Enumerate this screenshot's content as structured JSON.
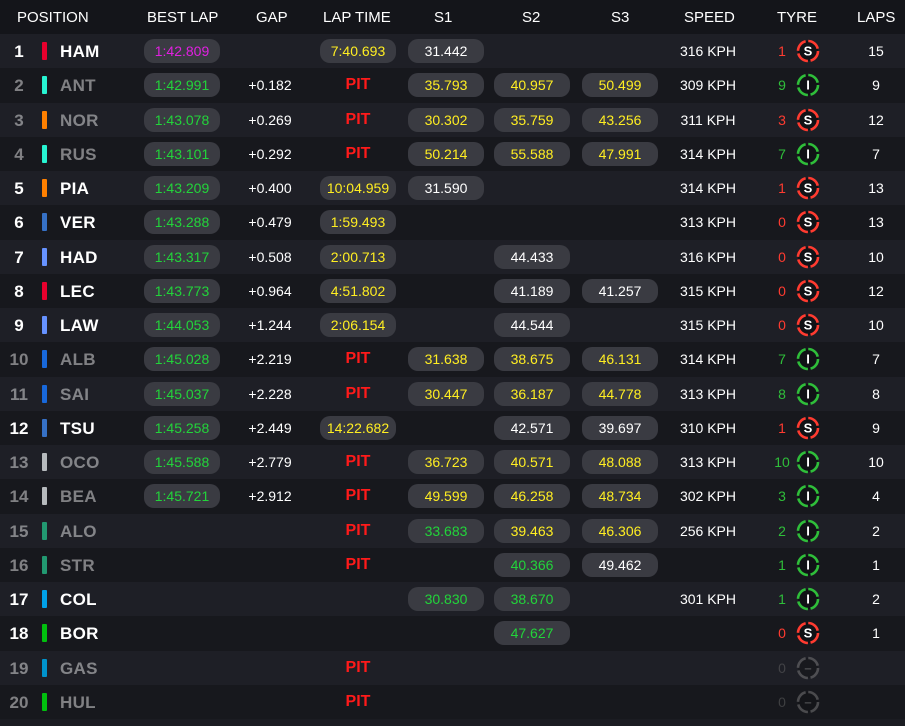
{
  "header": {
    "position": "POSITION",
    "best_lap": "BEST LAP",
    "gap": "GAP",
    "lap_time": "LAP TIME",
    "s1": "S1",
    "s2": "S2",
    "s3": "S3",
    "speed": "SPEED",
    "tyre": "TYRE",
    "laps": "LAPS"
  },
  "colors": {
    "purple": "#e020e0",
    "green": "#22d43a",
    "yellow": "#ffee22",
    "white": "#ffffff",
    "pit": "#ff1a1a",
    "soft": "#ff3b30",
    "inter": "#2fbe3a"
  },
  "rows": [
    {
      "pos": "1",
      "driver": "HAM",
      "team_color": "#e8002d",
      "best": "1:42.809",
      "best_color": "purple",
      "gap": "",
      "laptime": "7:40.693",
      "pit": "",
      "s1": "31.442",
      "s1_color": "white",
      "s2": "",
      "s2_color": "",
      "s3": "",
      "s3_color": "",
      "speed": "316 KPH",
      "age": "1",
      "tyre": "S",
      "laps": "15",
      "dim": false
    },
    {
      "pos": "2",
      "driver": "ANT",
      "team_color": "#27f4d2",
      "best": "1:42.991",
      "best_color": "green",
      "gap": "+0.182",
      "laptime": "",
      "pit": "PIT",
      "s1": "35.793",
      "s1_color": "yellow",
      "s2": "40.957",
      "s2_color": "yellow",
      "s3": "50.499",
      "s3_color": "yellow",
      "speed": "309 KPH",
      "age": "9",
      "tyre": "I",
      "laps": "9",
      "dim": true
    },
    {
      "pos": "3",
      "driver": "NOR",
      "team_color": "#ff8000",
      "best": "1:43.078",
      "best_color": "green",
      "gap": "+0.269",
      "laptime": "",
      "pit": "PIT",
      "s1": "30.302",
      "s1_color": "yellow",
      "s2": "35.759",
      "s2_color": "yellow",
      "s3": "43.256",
      "s3_color": "yellow",
      "speed": "311 KPH",
      "age": "3",
      "tyre": "S",
      "laps": "12",
      "dim": true
    },
    {
      "pos": "4",
      "driver": "RUS",
      "team_color": "#27f4d2",
      "best": "1:43.101",
      "best_color": "green",
      "gap": "+0.292",
      "laptime": "",
      "pit": "PIT",
      "s1": "50.214",
      "s1_color": "yellow",
      "s2": "55.588",
      "s2_color": "yellow",
      "s3": "47.991",
      "s3_color": "yellow",
      "speed": "314 KPH",
      "age": "7",
      "tyre": "I",
      "laps": "7",
      "dim": true
    },
    {
      "pos": "5",
      "driver": "PIA",
      "team_color": "#ff8000",
      "best": "1:43.209",
      "best_color": "green",
      "gap": "+0.400",
      "laptime": "10:04.959",
      "pit": "",
      "s1": "31.590",
      "s1_color": "white",
      "s2": "",
      "s2_color": "",
      "s3": "",
      "s3_color": "",
      "speed": "314 KPH",
      "age": "1",
      "tyre": "S",
      "laps": "13",
      "dim": false
    },
    {
      "pos": "6",
      "driver": "VER",
      "team_color": "#3671c6",
      "best": "1:43.288",
      "best_color": "green",
      "gap": "+0.479",
      "laptime": "1:59.493",
      "pit": "",
      "s1": "",
      "s1_color": "",
      "s2": "",
      "s2_color": "",
      "s3": "",
      "s3_color": "",
      "speed": "313 KPH",
      "age": "0",
      "tyre": "S",
      "laps": "13",
      "dim": false
    },
    {
      "pos": "7",
      "driver": "HAD",
      "team_color": "#6692ff",
      "best": "1:43.317",
      "best_color": "green",
      "gap": "+0.508",
      "laptime": "2:00.713",
      "pit": "",
      "s1": "",
      "s1_color": "",
      "s2": "44.433",
      "s2_color": "white",
      "s3": "",
      "s3_color": "",
      "speed": "316 KPH",
      "age": "0",
      "tyre": "S",
      "laps": "10",
      "dim": false
    },
    {
      "pos": "8",
      "driver": "LEC",
      "team_color": "#e8002d",
      "best": "1:43.773",
      "best_color": "green",
      "gap": "+0.964",
      "laptime": "4:51.802",
      "pit": "",
      "s1": "",
      "s1_color": "",
      "s2": "41.189",
      "s2_color": "white",
      "s3": "41.257",
      "s3_color": "white",
      "speed": "315 KPH",
      "age": "0",
      "tyre": "S",
      "laps": "12",
      "dim": false
    },
    {
      "pos": "9",
      "driver": "LAW",
      "team_color": "#6692ff",
      "best": "1:44.053",
      "best_color": "green",
      "gap": "+1.244",
      "laptime": "2:06.154",
      "pit": "",
      "s1": "",
      "s1_color": "",
      "s2": "44.544",
      "s2_color": "white",
      "s3": "",
      "s3_color": "",
      "speed": "315 KPH",
      "age": "0",
      "tyre": "S",
      "laps": "10",
      "dim": false
    },
    {
      "pos": "10",
      "driver": "ALB",
      "team_color": "#1868db",
      "best": "1:45.028",
      "best_color": "green",
      "gap": "+2.219",
      "laptime": "",
      "pit": "PIT",
      "s1": "31.638",
      "s1_color": "yellow",
      "s2": "38.675",
      "s2_color": "yellow",
      "s3": "46.131",
      "s3_color": "yellow",
      "speed": "314 KPH",
      "age": "7",
      "tyre": "I",
      "laps": "7",
      "dim": true
    },
    {
      "pos": "11",
      "driver": "SAI",
      "team_color": "#1868db",
      "best": "1:45.037",
      "best_color": "green",
      "gap": "+2.228",
      "laptime": "",
      "pit": "PIT",
      "s1": "30.447",
      "s1_color": "yellow",
      "s2": "36.187",
      "s2_color": "yellow",
      "s3": "44.778",
      "s3_color": "yellow",
      "speed": "313 KPH",
      "age": "8",
      "tyre": "I",
      "laps": "8",
      "dim": true
    },
    {
      "pos": "12",
      "driver": "TSU",
      "team_color": "#3671c6",
      "best": "1:45.258",
      "best_color": "green",
      "gap": "+2.449",
      "laptime": "14:22.682",
      "pit": "",
      "s1": "",
      "s1_color": "",
      "s2": "42.571",
      "s2_color": "white",
      "s3": "39.697",
      "s3_color": "white",
      "speed": "310 KPH",
      "age": "1",
      "tyre": "S",
      "laps": "9",
      "dim": false
    },
    {
      "pos": "13",
      "driver": "OCO",
      "team_color": "#b6babd",
      "best": "1:45.588",
      "best_color": "green",
      "gap": "+2.779",
      "laptime": "",
      "pit": "PIT",
      "s1": "36.723",
      "s1_color": "yellow",
      "s2": "40.571",
      "s2_color": "yellow",
      "s3": "48.088",
      "s3_color": "yellow",
      "speed": "313 KPH",
      "age": "10",
      "tyre": "I",
      "laps": "10",
      "dim": true
    },
    {
      "pos": "14",
      "driver": "BEA",
      "team_color": "#b6babd",
      "best": "1:45.721",
      "best_color": "green",
      "gap": "+2.912",
      "laptime": "",
      "pit": "PIT",
      "s1": "49.599",
      "s1_color": "yellow",
      "s2": "46.258",
      "s2_color": "yellow",
      "s3": "48.734",
      "s3_color": "yellow",
      "speed": "302 KPH",
      "age": "3",
      "tyre": "I",
      "laps": "4",
      "dim": true
    },
    {
      "pos": "15",
      "driver": "ALO",
      "team_color": "#229971",
      "best": "",
      "best_color": "",
      "gap": "",
      "laptime": "",
      "pit": "PIT",
      "s1": "33.683",
      "s1_color": "green",
      "s2": "39.463",
      "s2_color": "yellow",
      "s3": "46.306",
      "s3_color": "yellow",
      "speed": "256 KPH",
      "age": "2",
      "tyre": "I",
      "laps": "2",
      "dim": true
    },
    {
      "pos": "16",
      "driver": "STR",
      "team_color": "#229971",
      "best": "",
      "best_color": "",
      "gap": "",
      "laptime": "",
      "pit": "PIT",
      "s1": "",
      "s1_color": "",
      "s2": "40.366",
      "s2_color": "green",
      "s3": "49.462",
      "s3_color": "white",
      "speed": "",
      "age": "1",
      "tyre": "I",
      "laps": "1",
      "dim": true
    },
    {
      "pos": "17",
      "driver": "COL",
      "team_color": "#00a1e8",
      "best": "",
      "best_color": "",
      "gap": "",
      "laptime": "",
      "pit": "",
      "s1": "30.830",
      "s1_color": "green",
      "s2": "38.670",
      "s2_color": "green",
      "s3": "",
      "s3_color": "",
      "speed": "301 KPH",
      "age": "1",
      "tyre": "I",
      "laps": "2",
      "dim": false
    },
    {
      "pos": "18",
      "driver": "BOR",
      "team_color": "#01c00e",
      "best": "",
      "best_color": "",
      "gap": "",
      "laptime": "",
      "pit": "",
      "s1": "",
      "s1_color": "",
      "s2": "47.627",
      "s2_color": "green",
      "s3": "",
      "s3_color": "",
      "speed": "",
      "age": "0",
      "tyre": "S",
      "laps": "1",
      "dim": false
    },
    {
      "pos": "19",
      "driver": "GAS",
      "team_color": "#0093cc",
      "best": "",
      "best_color": "",
      "gap": "",
      "laptime": "",
      "pit": "PIT",
      "s1": "",
      "s1_color": "",
      "s2": "",
      "s2_color": "",
      "s3": "",
      "s3_color": "",
      "speed": "",
      "age": "0",
      "tyre": "unknown",
      "laps": "",
      "dim": true
    },
    {
      "pos": "20",
      "driver": "HUL",
      "team_color": "#01c00e",
      "best": "",
      "best_color": "",
      "gap": "",
      "laptime": "",
      "pit": "PIT",
      "s1": "",
      "s1_color": "",
      "s2": "",
      "s2_color": "",
      "s3": "",
      "s3_color": "",
      "speed": "",
      "age": "0",
      "tyre": "unknown",
      "laps": "",
      "dim": true
    }
  ]
}
